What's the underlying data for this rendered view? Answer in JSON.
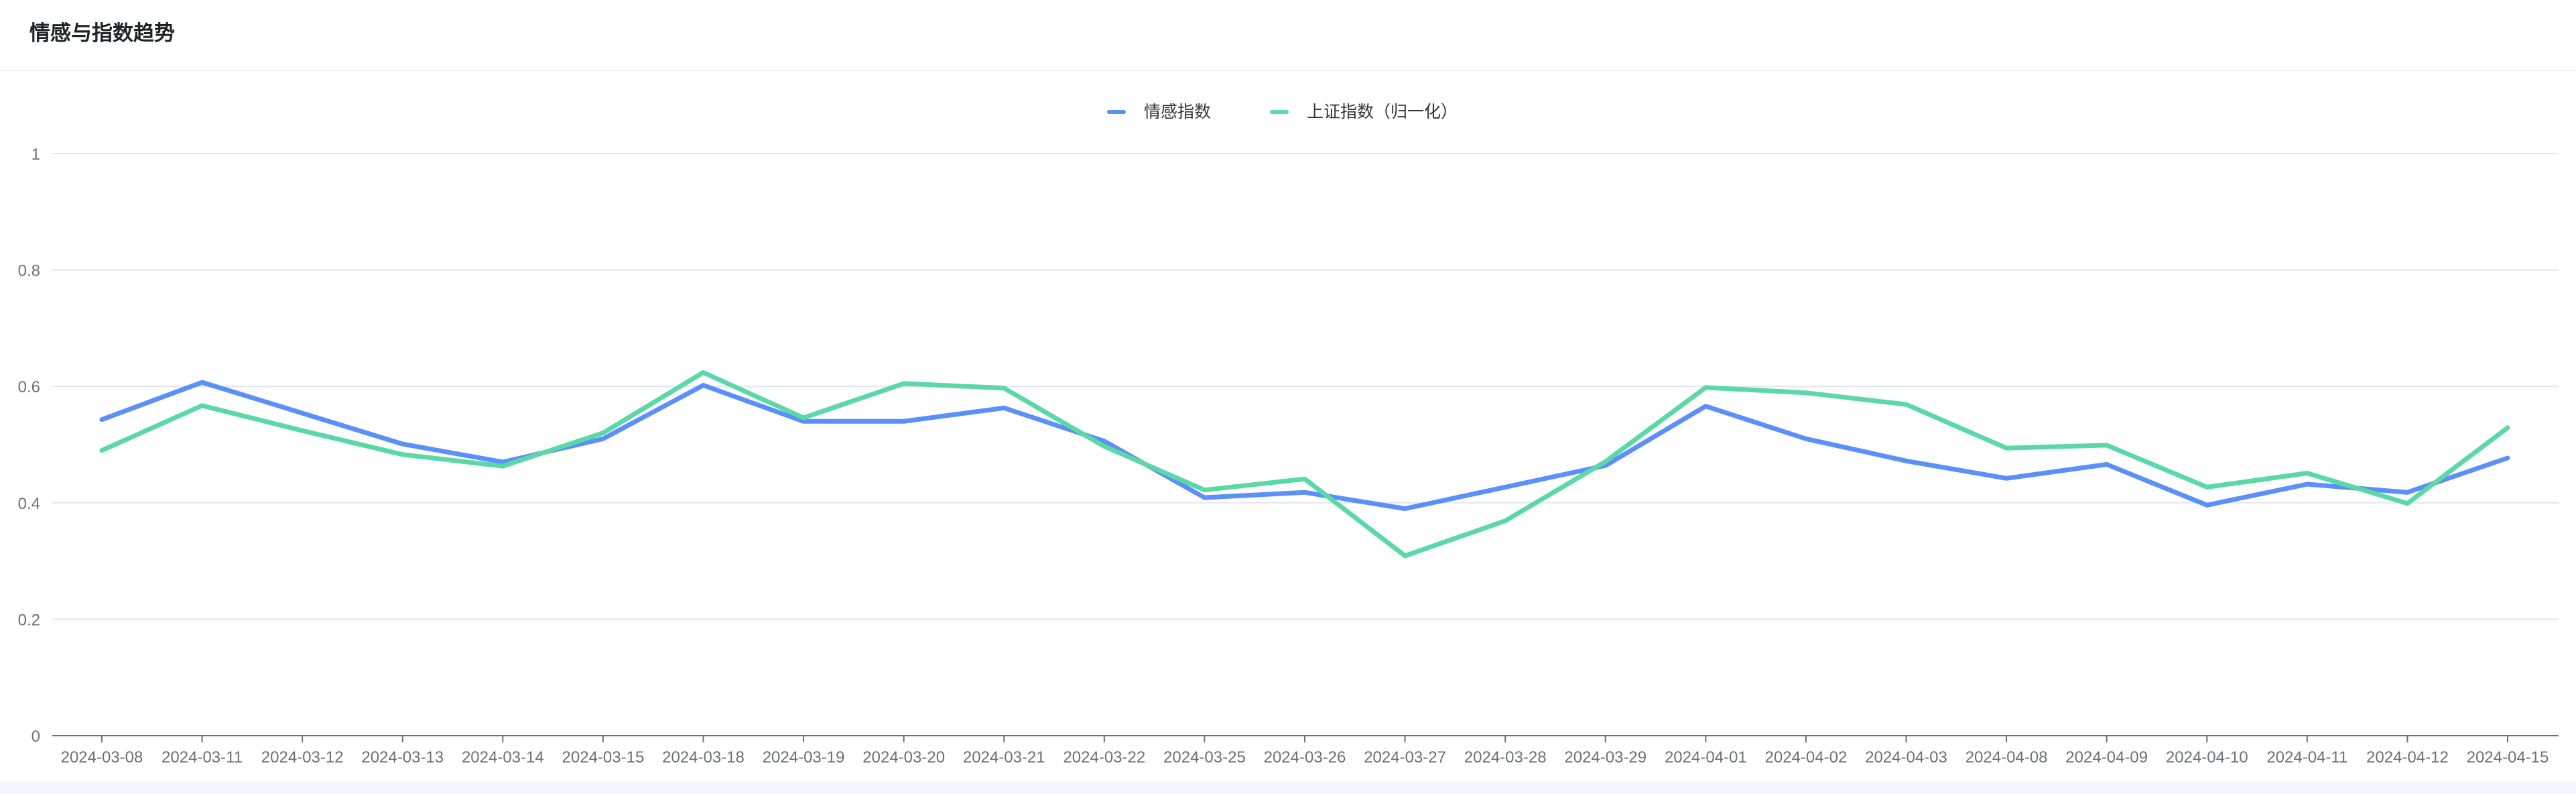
{
  "panel": {
    "title": "情感与指数趋势"
  },
  "chart_data": {
    "type": "line",
    "title": "",
    "xlabel": "",
    "ylabel": "",
    "ylim": [
      0,
      1
    ],
    "yticks": [
      0,
      0.2,
      0.4,
      0.6,
      0.8,
      1
    ],
    "grid": true,
    "legend_position": "top-center",
    "categories": [
      "2024-03-08",
      "2024-03-11",
      "2024-03-12",
      "2024-03-13",
      "2024-03-14",
      "2024-03-15",
      "2024-03-18",
      "2024-03-19",
      "2024-03-20",
      "2024-03-21",
      "2024-03-22",
      "2024-03-25",
      "2024-03-26",
      "2024-03-27",
      "2024-03-28",
      "2024-03-29",
      "2024-04-01",
      "2024-04-02",
      "2024-04-03",
      "2024-04-08",
      "2024-04-09",
      "2024-04-10",
      "2024-04-11",
      "2024-04-12",
      "2024-04-15"
    ],
    "series": [
      {
        "name": "情感指数",
        "color": "#5b8ff9",
        "values": [
          0.543,
          0.607,
          0.554,
          0.501,
          0.47,
          0.51,
          0.602,
          0.54,
          0.54,
          0.563,
          0.506,
          0.409,
          0.418,
          0.39,
          0.427,
          0.464,
          0.566,
          0.51,
          0.472,
          0.442,
          0.466,
          0.396,
          0.432,
          0.418,
          0.477
        ]
      },
      {
        "name": "上证指数（归一化）",
        "color": "#5ad8a6",
        "values": [
          0.49,
          0.567,
          0.524,
          0.483,
          0.463,
          0.52,
          0.624,
          0.546,
          0.605,
          0.597,
          0.497,
          0.422,
          0.441,
          0.309,
          0.369,
          0.471,
          0.598,
          0.589,
          0.569,
          0.494,
          0.499,
          0.427,
          0.451,
          0.399,
          0.529
        ]
      }
    ]
  }
}
